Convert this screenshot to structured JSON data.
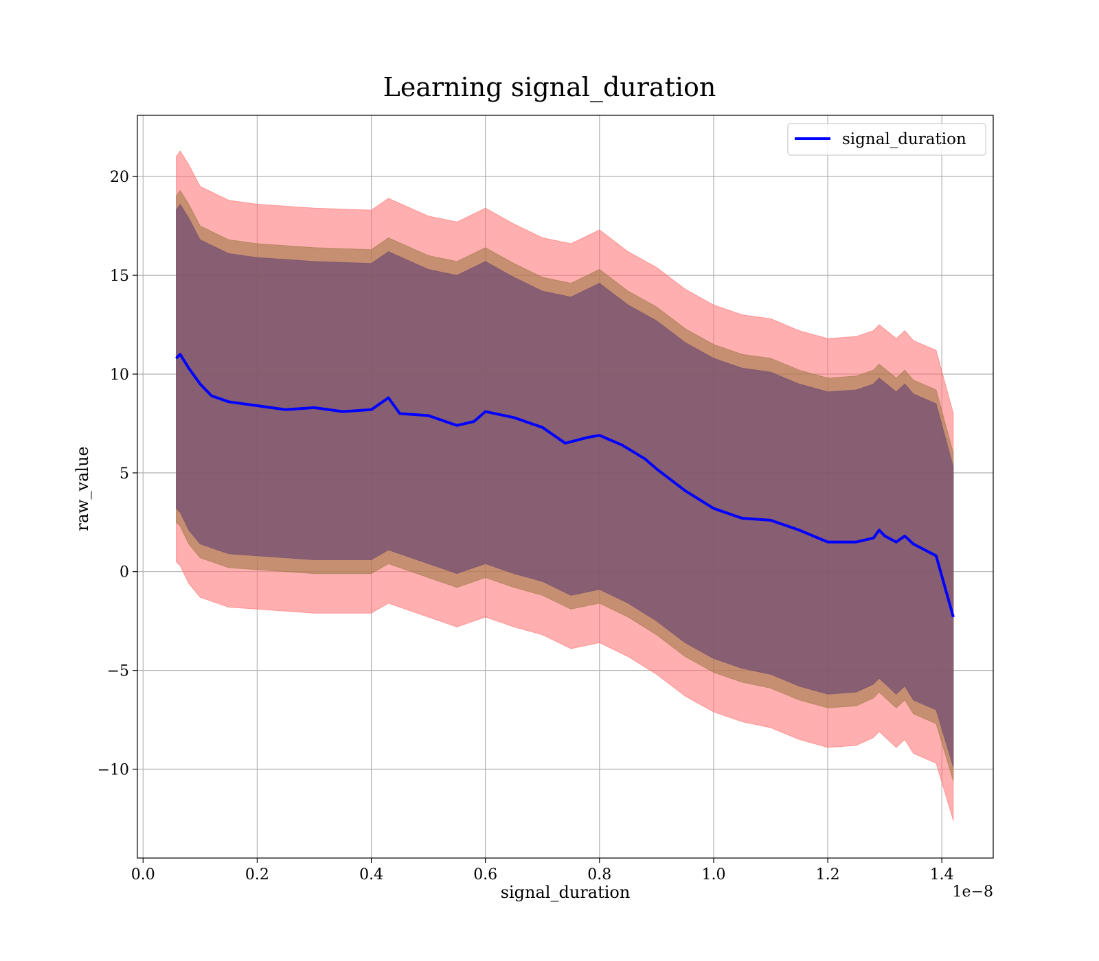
{
  "chart_data": {
    "type": "line",
    "title": "Learning signal_duration",
    "xlabel": "signal_duration",
    "ylabel": "raw_value",
    "x_offset_label": "1e−8",
    "xlim": [
      -0.01,
      1.49
    ],
    "ylim": [
      -14.5,
      23.1
    ],
    "grid": true,
    "legend_position": "top-right",
    "x_ticks": [
      0.0,
      0.2,
      0.4,
      0.6,
      0.8,
      1.0,
      1.2,
      1.4
    ],
    "x_tick_labels": [
      "0.0",
      "0.2",
      "0.4",
      "0.6",
      "0.8",
      "1.0",
      "1.2",
      "1.4"
    ],
    "y_ticks": [
      -10,
      -5,
      0,
      5,
      10,
      15,
      20
    ],
    "y_tick_labels": [
      "−10",
      "−5",
      "0",
      "5",
      "10",
      "15",
      "20"
    ],
    "series": [
      {
        "name": "signal_duration",
        "color": "#0000ff",
        "x": [
          0.058,
          0.065,
          0.08,
          0.1,
          0.12,
          0.15,
          0.2,
          0.25,
          0.3,
          0.35,
          0.4,
          0.43,
          0.45,
          0.5,
          0.55,
          0.58,
          0.6,
          0.65,
          0.7,
          0.74,
          0.78,
          0.8,
          0.84,
          0.88,
          0.9,
          0.95,
          1.0,
          1.05,
          1.1,
          1.15,
          1.2,
          1.25,
          1.28,
          1.29,
          1.3,
          1.32,
          1.335,
          1.35,
          1.39,
          1.42
        ],
        "values": [
          10.8,
          11.0,
          10.3,
          9.5,
          8.9,
          8.6,
          8.4,
          8.2,
          8.3,
          8.1,
          8.2,
          8.8,
          8.0,
          7.9,
          7.4,
          7.6,
          8.1,
          7.8,
          7.3,
          6.5,
          6.8,
          6.9,
          6.4,
          5.7,
          5.2,
          4.1,
          3.2,
          2.7,
          2.6,
          2.1,
          1.5,
          1.5,
          1.7,
          2.1,
          1.8,
          1.5,
          1.8,
          1.4,
          0.8,
          -2.3
        ]
      }
    ],
    "bands": [
      {
        "color": "#ff6e6e",
        "opacity": 0.55,
        "x": [
          0.058,
          0.065,
          0.08,
          0.1,
          0.15,
          0.2,
          0.3,
          0.4,
          0.43,
          0.5,
          0.55,
          0.6,
          0.65,
          0.7,
          0.75,
          0.8,
          0.85,
          0.9,
          0.95,
          1.0,
          1.05,
          1.1,
          1.15,
          1.2,
          1.25,
          1.28,
          1.29,
          1.32,
          1.335,
          1.35,
          1.39,
          1.42
        ],
        "upper": [
          21.0,
          21.3,
          20.6,
          19.5,
          18.8,
          18.6,
          18.4,
          18.3,
          18.9,
          18.0,
          17.7,
          18.4,
          17.6,
          16.9,
          16.6,
          17.3,
          16.2,
          15.4,
          14.3,
          13.5,
          13.0,
          12.8,
          12.2,
          11.8,
          11.9,
          12.2,
          12.5,
          11.8,
          12.2,
          11.7,
          11.2,
          8.0
        ],
        "lower": [
          0.5,
          0.3,
          -0.6,
          -1.3,
          -1.8,
          -1.9,
          -2.1,
          -2.1,
          -1.6,
          -2.3,
          -2.8,
          -2.3,
          -2.8,
          -3.2,
          -3.9,
          -3.6,
          -4.3,
          -5.2,
          -6.3,
          -7.1,
          -7.6,
          -7.9,
          -8.5,
          -8.9,
          -8.8,
          -8.4,
          -8.1,
          -8.9,
          -8.5,
          -9.2,
          -9.7,
          -12.6
        ]
      },
      {
        "color": "#a07a4a",
        "opacity": 0.6,
        "x": [
          0.058,
          0.065,
          0.08,
          0.1,
          0.15,
          0.2,
          0.3,
          0.4,
          0.43,
          0.5,
          0.55,
          0.6,
          0.65,
          0.7,
          0.75,
          0.8,
          0.85,
          0.9,
          0.95,
          1.0,
          1.05,
          1.1,
          1.15,
          1.2,
          1.25,
          1.28,
          1.29,
          1.32,
          1.335,
          1.35,
          1.39,
          1.42
        ],
        "upper": [
          19.0,
          19.3,
          18.6,
          17.5,
          16.8,
          16.6,
          16.4,
          16.3,
          16.9,
          16.0,
          15.7,
          16.4,
          15.6,
          14.9,
          14.6,
          15.3,
          14.2,
          13.4,
          12.3,
          11.5,
          11.0,
          10.8,
          10.2,
          9.8,
          9.9,
          10.2,
          10.5,
          9.8,
          10.2,
          9.7,
          9.2,
          6.0
        ],
        "lower": [
          2.5,
          2.3,
          1.4,
          0.7,
          0.2,
          0.1,
          -0.1,
          -0.1,
          0.4,
          -0.3,
          -0.8,
          -0.3,
          -0.8,
          -1.2,
          -1.9,
          -1.6,
          -2.3,
          -3.2,
          -4.3,
          -5.1,
          -5.6,
          -5.9,
          -6.5,
          -6.9,
          -6.8,
          -6.4,
          -6.1,
          -6.9,
          -6.5,
          -7.2,
          -7.7,
          -10.6
        ]
      },
      {
        "color": "#6e4a72",
        "opacity": 0.7,
        "x": [
          0.058,
          0.065,
          0.08,
          0.1,
          0.15,
          0.2,
          0.3,
          0.4,
          0.43,
          0.5,
          0.55,
          0.6,
          0.65,
          0.7,
          0.75,
          0.8,
          0.85,
          0.9,
          0.95,
          1.0,
          1.05,
          1.1,
          1.15,
          1.2,
          1.25,
          1.28,
          1.29,
          1.32,
          1.335,
          1.35,
          1.39,
          1.42
        ],
        "upper": [
          18.3,
          18.6,
          17.9,
          16.8,
          16.1,
          15.9,
          15.7,
          15.6,
          16.2,
          15.3,
          15.0,
          15.7,
          14.9,
          14.2,
          13.9,
          14.6,
          13.5,
          12.7,
          11.6,
          10.8,
          10.3,
          10.1,
          9.5,
          9.1,
          9.2,
          9.5,
          9.8,
          9.1,
          9.5,
          9.0,
          8.5,
          5.3
        ],
        "lower": [
          3.2,
          3.0,
          2.1,
          1.4,
          0.9,
          0.8,
          0.6,
          0.6,
          1.1,
          0.4,
          -0.1,
          0.4,
          -0.1,
          -0.5,
          -1.2,
          -0.9,
          -1.6,
          -2.5,
          -3.6,
          -4.4,
          -4.9,
          -5.2,
          -5.8,
          -6.2,
          -6.1,
          -5.7,
          -5.4,
          -6.2,
          -5.8,
          -6.5,
          -7.0,
          -9.9
        ]
      }
    ]
  }
}
